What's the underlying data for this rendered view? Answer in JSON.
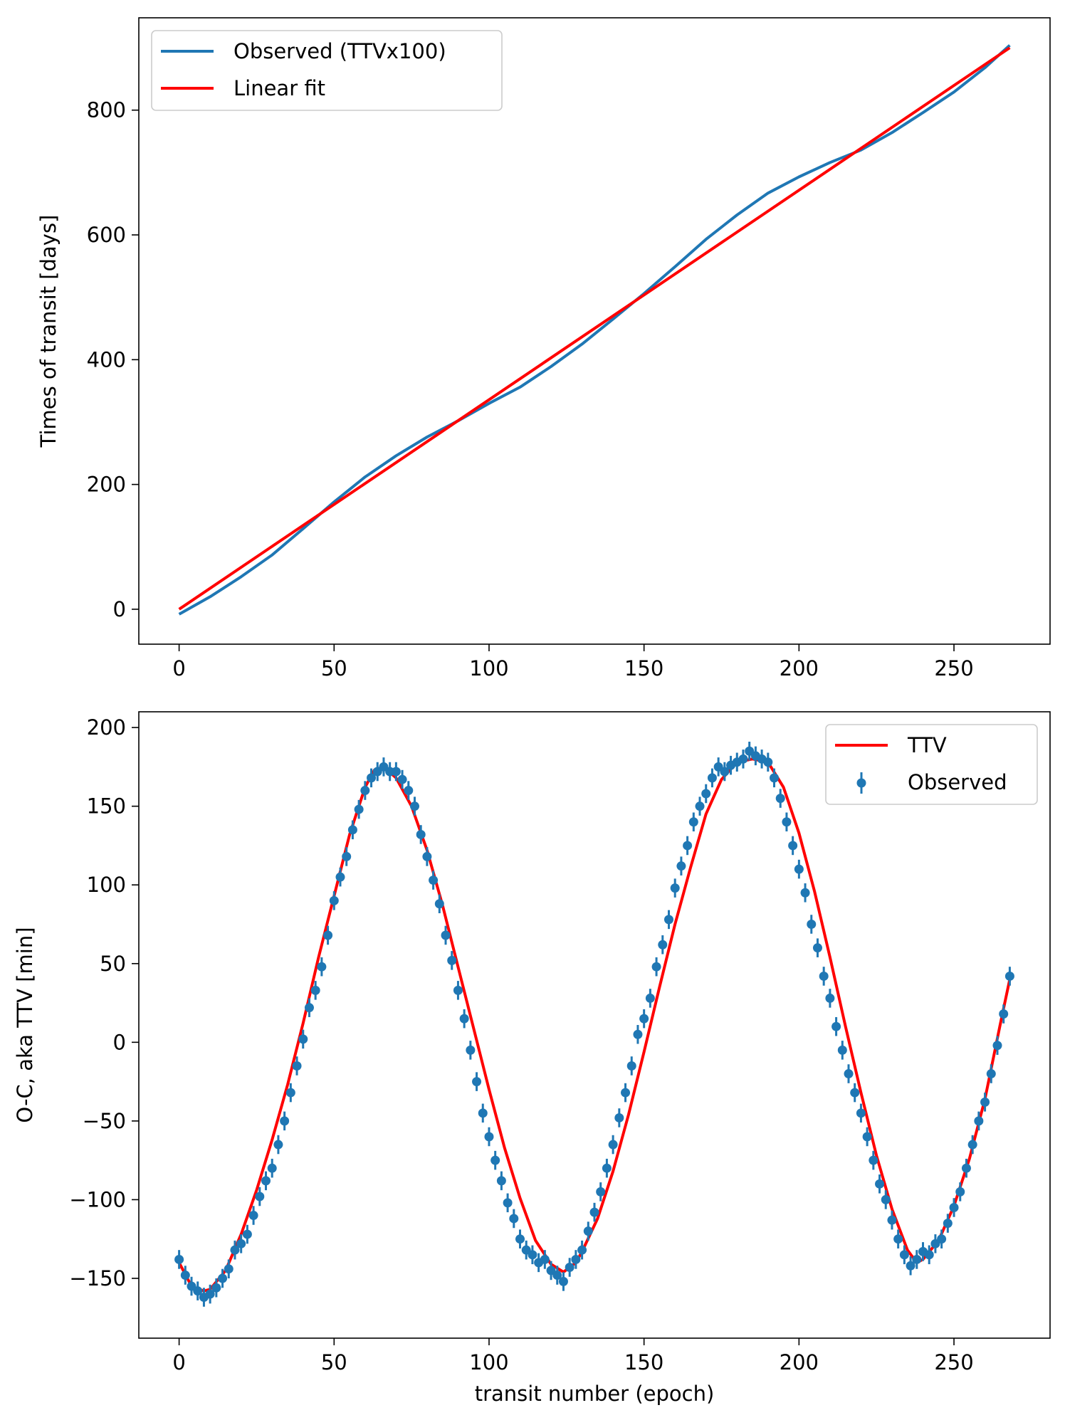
{
  "chart_data": [
    {
      "type": "line",
      "title": "",
      "xlabel": "",
      "ylabel": "Times of transit [days]",
      "xlim": [
        -13,
        281
      ],
      "ylim": [
        -56,
        948
      ],
      "xticks": [
        0,
        50,
        100,
        150,
        200,
        250
      ],
      "yticks": [
        0,
        200,
        400,
        600,
        800
      ],
      "legend_position": "upper-left",
      "series": [
        {
          "name": "Observed (TTVx100)",
          "color": "#1f77b4",
          "style": "line",
          "x": [
            0,
            10,
            20,
            30,
            40,
            50,
            60,
            70,
            80,
            90,
            100,
            110,
            120,
            130,
            140,
            150,
            160,
            170,
            180,
            190,
            200,
            210,
            220,
            230,
            240,
            250,
            260,
            268
          ],
          "y": [
            -8,
            20,
            52,
            87,
            129,
            172,
            212,
            246,
            276,
            302,
            330,
            356,
            389,
            425,
            465,
            506,
            549,
            593,
            632,
            667,
            693,
            716,
            736,
            764,
            796,
            829,
            868,
            904
          ]
        },
        {
          "name": "Linear fit",
          "color": "#ff0000",
          "style": "line",
          "x": [
            0,
            268
          ],
          "y": [
            0,
            900
          ]
        }
      ]
    },
    {
      "type": "line",
      "title": "",
      "xlabel": "transit number (epoch)",
      "ylabel": "O-C, aka TTV [min]",
      "xlim": [
        -13,
        281
      ],
      "ylim": [
        -188,
        210
      ],
      "xticks": [
        0,
        50,
        100,
        150,
        200,
        250
      ],
      "yticks": [
        -150,
        -100,
        -50,
        0,
        50,
        100,
        150,
        200
      ],
      "legend_position": "upper-right",
      "model": {
        "name": "TTV",
        "color": "#ff0000",
        "x": [
          0,
          4,
          8,
          10,
          15,
          20,
          25,
          30,
          35,
          40,
          45,
          50,
          55,
          60,
          63,
          66,
          70,
          75,
          80,
          85,
          90,
          95,
          100,
          105,
          110,
          115,
          120,
          124,
          128,
          130,
          135,
          140,
          145,
          150,
          155,
          160,
          165,
          170,
          175,
          180,
          185,
          190,
          195,
          200,
          205,
          210,
          215,
          220,
          225,
          230,
          235,
          238,
          240,
          245,
          250,
          255,
          260,
          265,
          268
        ],
        "y": [
          -140,
          -155,
          -158,
          -157,
          -145,
          -122,
          -94,
          -62,
          -27,
          12,
          54,
          93,
          132,
          162,
          173,
          175,
          168,
          150,
          122,
          87,
          48,
          9,
          -30,
          -67,
          -99,
          -126,
          -141,
          -146,
          -140,
          -133,
          -112,
          -82,
          -46,
          -6,
          35,
          75,
          111,
          145,
          167,
          178,
          180,
          178,
          162,
          133,
          96,
          54,
          10,
          -32,
          -72,
          -106,
          -132,
          -140,
          -138,
          -126,
          -104,
          -74,
          -36,
          12,
          40
        ]
      },
      "observed": {
        "name": "Observed",
        "color": "#1f77b4",
        "error": 6,
        "x": [
          0,
          2,
          4,
          6,
          8,
          10,
          12,
          14,
          16,
          18,
          20,
          22,
          24,
          26,
          28,
          30,
          32,
          34,
          36,
          38,
          40,
          42,
          44,
          46,
          48,
          50,
          52,
          54,
          56,
          58,
          60,
          62,
          64,
          66,
          68,
          70,
          72,
          74,
          76,
          78,
          80,
          82,
          84,
          86,
          88,
          90,
          92,
          94,
          96,
          98,
          100,
          102,
          104,
          106,
          108,
          110,
          112,
          114,
          116,
          118,
          120,
          122,
          124,
          126,
          128,
          130,
          132,
          134,
          136,
          138,
          140,
          142,
          144,
          146,
          148,
          150,
          152,
          154,
          156,
          158,
          160,
          162,
          164,
          166,
          168,
          170,
          172,
          174,
          176,
          178,
          180,
          182,
          184,
          186,
          188,
          190,
          192,
          194,
          196,
          198,
          200,
          202,
          204,
          206,
          208,
          210,
          212,
          214,
          216,
          218,
          220,
          222,
          224,
          226,
          228,
          230,
          232,
          234,
          236,
          238,
          240,
          242,
          244,
          246,
          248,
          250,
          252,
          254,
          256,
          258,
          260,
          262,
          264,
          266,
          268
        ],
        "y": [
          -138,
          -148,
          -155,
          -158,
          -162,
          -160,
          -156,
          -150,
          -144,
          -132,
          -128,
          -122,
          -110,
          -98,
          -88,
          -80,
          -65,
          -50,
          -32,
          -15,
          2,
          22,
          33,
          48,
          68,
          90,
          105,
          118,
          135,
          148,
          160,
          168,
          172,
          175,
          172,
          172,
          167,
          160,
          150,
          132,
          118,
          103,
          88,
          68,
          52,
          33,
          15,
          -5,
          -25,
          -45,
          -60,
          -75,
          -88,
          -102,
          -112,
          -125,
          -132,
          -135,
          -140,
          -138,
          -145,
          -148,
          -152,
          -143,
          -138,
          -132,
          -120,
          -108,
          -95,
          -80,
          -65,
          -48,
          -32,
          -15,
          5,
          15,
          28,
          48,
          62,
          78,
          98,
          112,
          125,
          140,
          150,
          158,
          168,
          175,
          172,
          176,
          178,
          180,
          185,
          182,
          180,
          178,
          168,
          155,
          140,
          125,
          110,
          95,
          75,
          60,
          42,
          28,
          10,
          -5,
          -20,
          -32,
          -45,
          -60,
          -75,
          -90,
          -100,
          -113,
          -125,
          -135,
          -142,
          -138,
          -133,
          -135,
          -128,
          -125,
          -115,
          -105,
          -95,
          -80,
          -65,
          -50,
          -38,
          -20,
          -2,
          18,
          42
        ]
      }
    }
  ]
}
